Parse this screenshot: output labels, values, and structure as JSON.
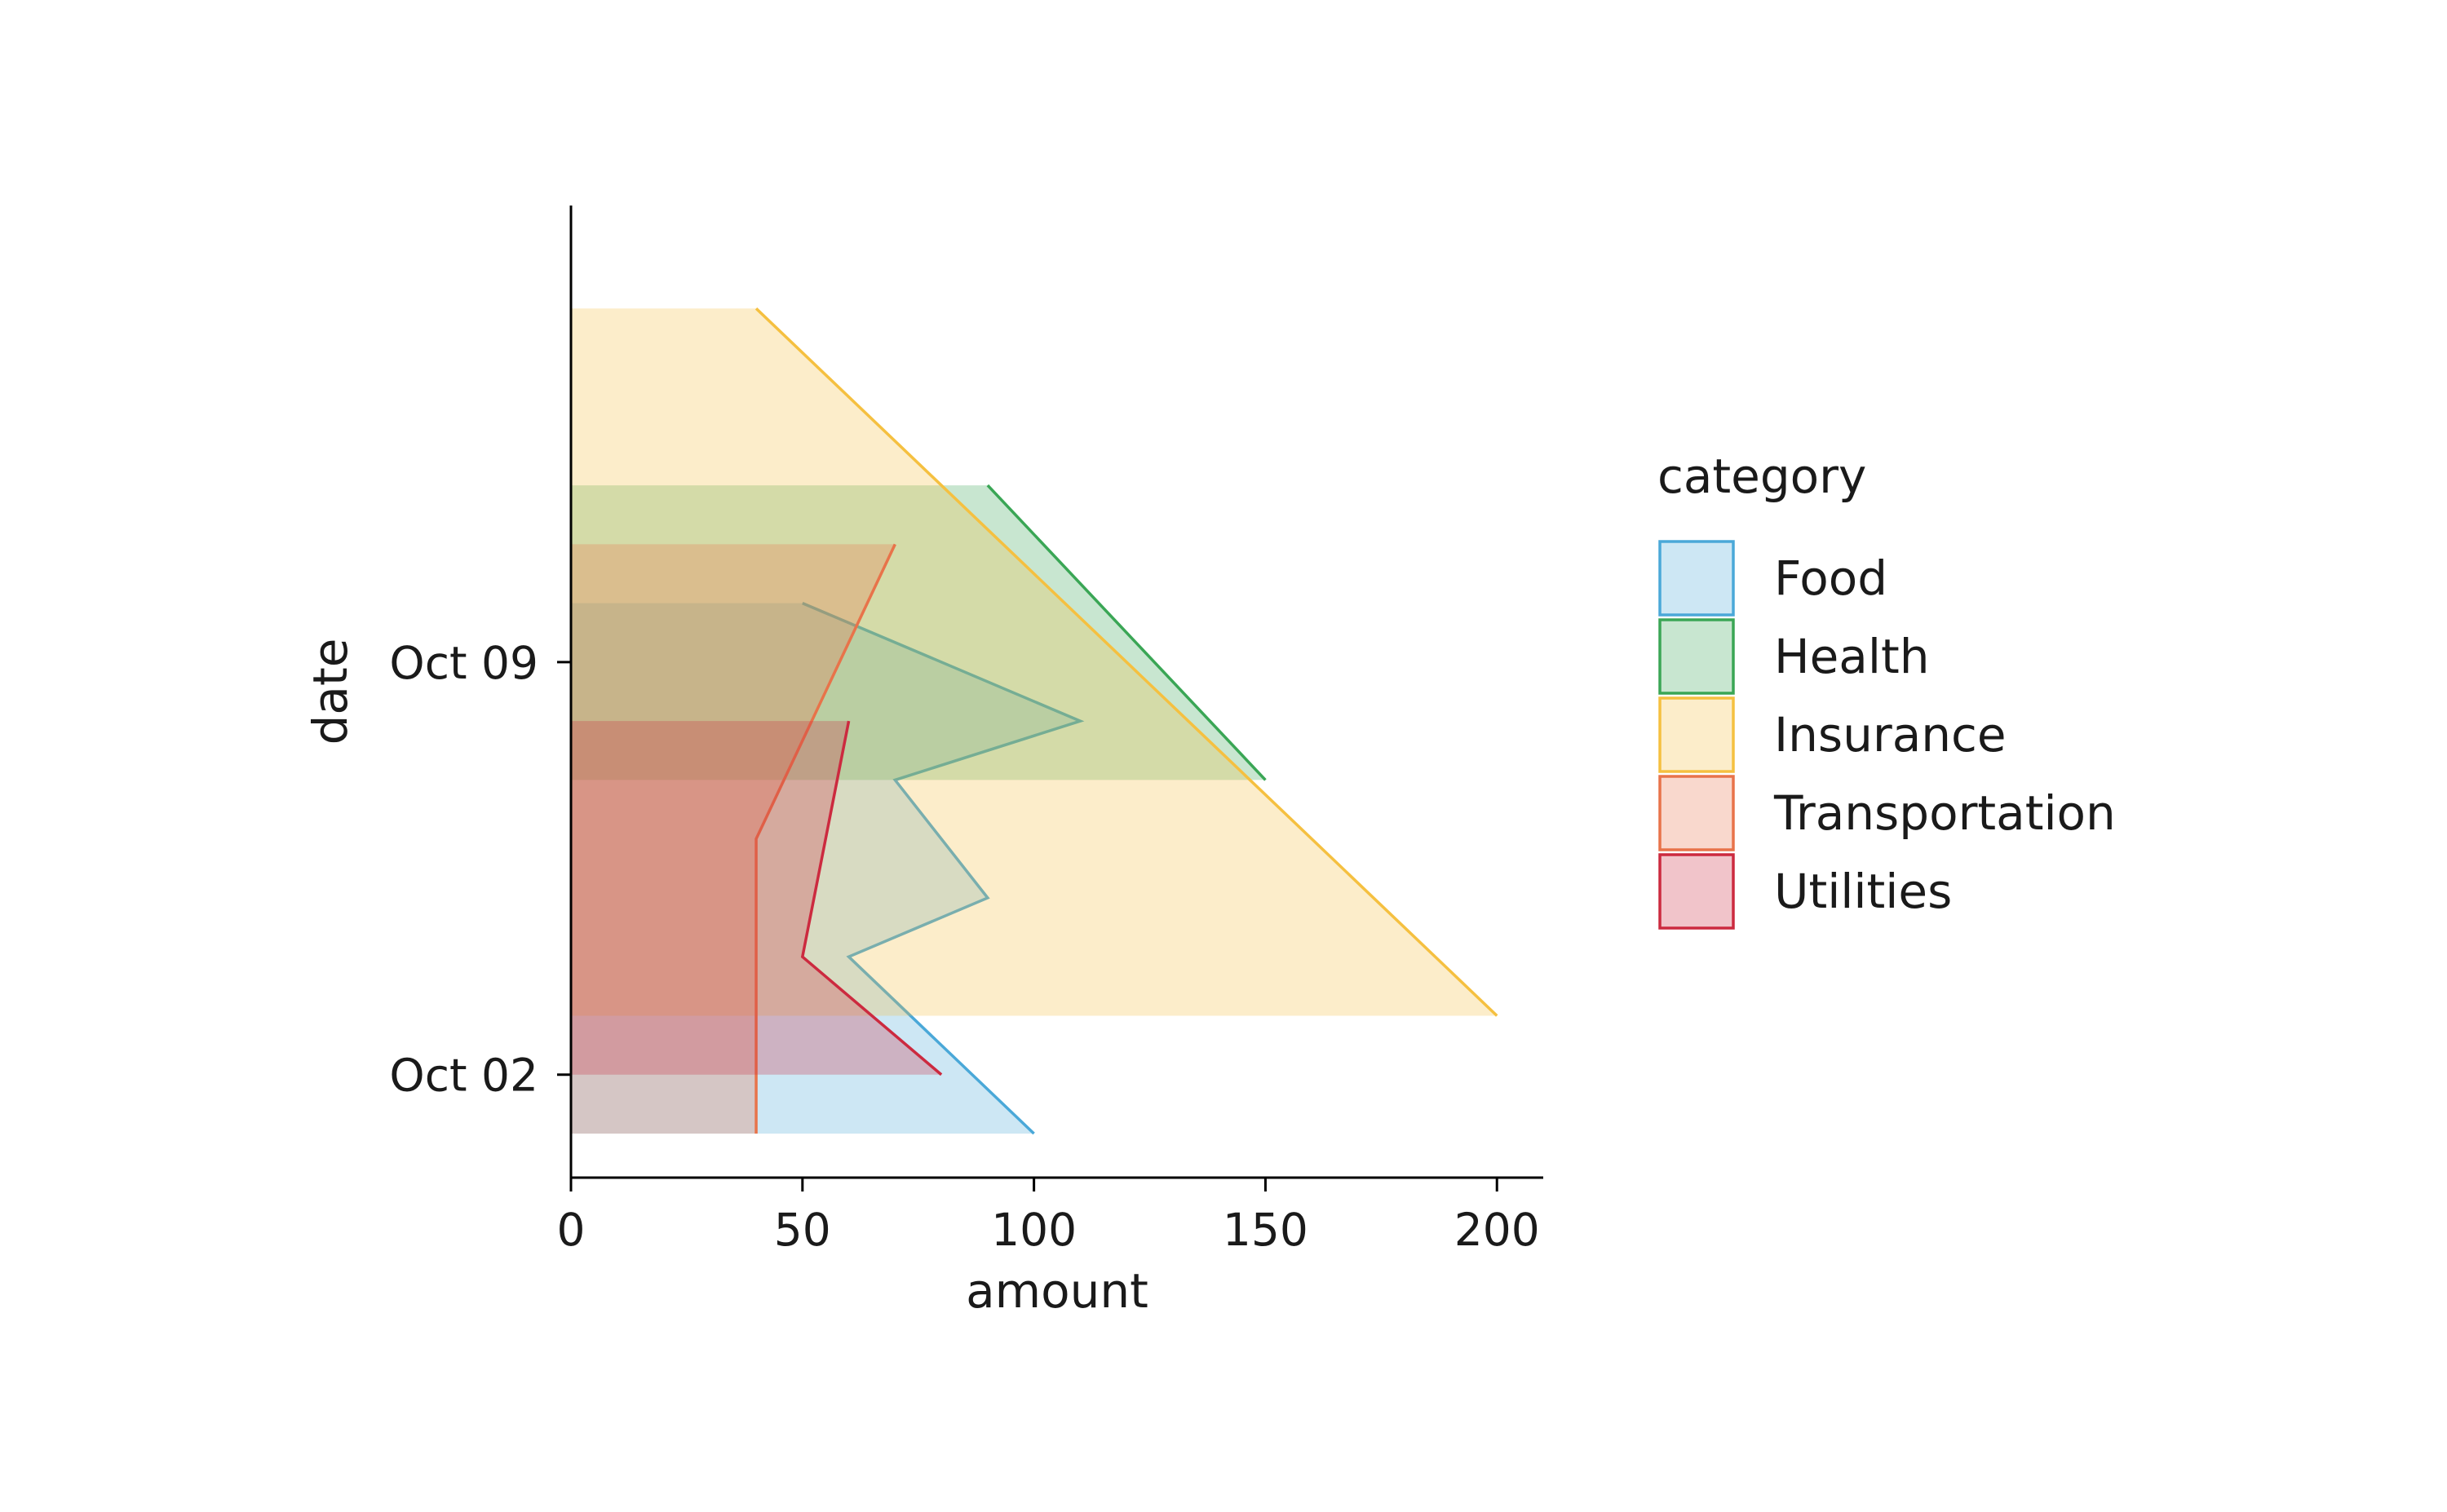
{
  "chart_data": {
    "type": "area",
    "orientation": "horizontal",
    "xlabel": "amount",
    "ylabel": "date",
    "xlim": [
      0,
      210
    ],
    "ylim": [
      "2023-10-01",
      "2023-10-16"
    ],
    "x_ticks": [
      0,
      50,
      100,
      150,
      200
    ],
    "y_ticks": [
      {
        "date": "2023-10-02",
        "label": "Oct 02"
      },
      {
        "date": "2023-10-09",
        "label": "Oct 09"
      }
    ],
    "grid": false,
    "legend": {
      "title": "category",
      "position": "right"
    },
    "series": [
      {
        "name": "Food",
        "color": "#4aa8d8",
        "points": [
          {
            "date": "2023-10-01",
            "amount": 100
          },
          {
            "date": "2023-10-04",
            "amount": 60
          },
          {
            "date": "2023-10-05",
            "amount": 90
          },
          {
            "date": "2023-10-07",
            "amount": 70
          },
          {
            "date": "2023-10-08",
            "amount": 110
          },
          {
            "date": "2023-10-10",
            "amount": 50
          }
        ]
      },
      {
        "name": "Health",
        "color": "#3aa655",
        "points": [
          {
            "date": "2023-10-07",
            "amount": 150
          },
          {
            "date": "2023-10-12",
            "amount": 90
          }
        ]
      },
      {
        "name": "Insurance",
        "color": "#f5c040",
        "points": [
          {
            "date": "2023-10-03",
            "amount": 200
          },
          {
            "date": "2023-10-15",
            "amount": 40
          }
        ]
      },
      {
        "name": "Transportation",
        "color": "#e8734a",
        "points": [
          {
            "date": "2023-10-01",
            "amount": 40
          },
          {
            "date": "2023-10-06",
            "amount": 40
          },
          {
            "date": "2023-10-11",
            "amount": 70
          }
        ]
      },
      {
        "name": "Utilities",
        "color": "#cc2a3f",
        "points": [
          {
            "date": "2023-10-02",
            "amount": 80
          },
          {
            "date": "2023-10-04",
            "amount": 50
          },
          {
            "date": "2023-10-08",
            "amount": 60
          }
        ]
      }
    ]
  }
}
